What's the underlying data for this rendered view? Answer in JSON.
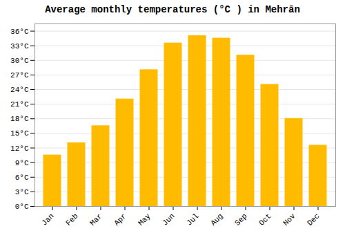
{
  "chart_data": {
    "type": "bar",
    "title": "Average monthly temperatures (°C ) in Mehrān",
    "categories": [
      "Jan",
      "Feb",
      "Mar",
      "Apr",
      "May",
      "Jun",
      "Jul",
      "Aug",
      "Sep",
      "Oct",
      "Nov",
      "Dec"
    ],
    "values": [
      10.5,
      13.0,
      16.5,
      22.0,
      28.0,
      33.5,
      35.0,
      34.5,
      31.0,
      25.0,
      18.0,
      12.5
    ],
    "color": "#FFBB00",
    "ylim": [
      0,
      37.5
    ],
    "yticks": [
      {
        "value": 0,
        "label": "0°C"
      },
      {
        "value": 3,
        "label": "3°C"
      },
      {
        "value": 6,
        "label": "6°C"
      },
      {
        "value": 9,
        "label": "9°C"
      },
      {
        "value": 12,
        "label": "12°C"
      },
      {
        "value": 15,
        "label": "15°C"
      },
      {
        "value": 18,
        "label": "18°C"
      },
      {
        "value": 21,
        "label": "21°C"
      },
      {
        "value": 24,
        "label": "24°C"
      },
      {
        "value": 27,
        "label": "27°C"
      },
      {
        "value": 30,
        "label": "30°C"
      },
      {
        "value": 33,
        "label": "33°C"
      },
      {
        "value": 36,
        "label": "36°C"
      }
    ],
    "grid": true
  }
}
